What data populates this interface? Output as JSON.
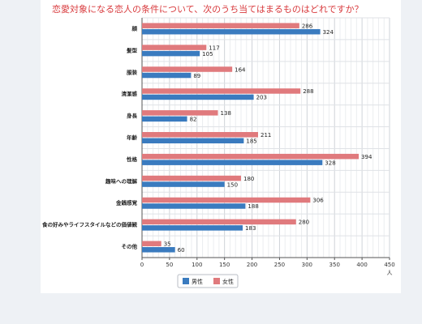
{
  "chart_data": {
    "type": "bar",
    "orientation": "horizontal",
    "title": "恋愛対象になる恋人の条件について、次のうち当てはまるものはどれですか？",
    "categories": [
      "顔",
      "髪型",
      "服装",
      "清潔感",
      "身長",
      "年齢",
      "性格",
      "趣味への理解",
      "金銭感覚",
      "食の好みやライフスタイルなどの価値観",
      "その他"
    ],
    "series": [
      {
        "name": "女性",
        "values": [
          286,
          117,
          164,
          288,
          138,
          211,
          394,
          180,
          306,
          280,
          35
        ]
      },
      {
        "name": "男性",
        "values": [
          324,
          105,
          89,
          203,
          82,
          185,
          328,
          150,
          188,
          183,
          60
        ]
      }
    ],
    "legend_order": [
      "男性",
      "女性"
    ],
    "xlabel": "人",
    "xlim": [
      0,
      450
    ],
    "xticks": [
      0,
      50,
      100,
      150,
      200,
      250,
      300,
      350,
      400,
      450
    ],
    "grid": true,
    "legend": "bottom",
    "colors": {
      "男性": "#3a7bbf",
      "女性": "#e07a7d"
    }
  }
}
